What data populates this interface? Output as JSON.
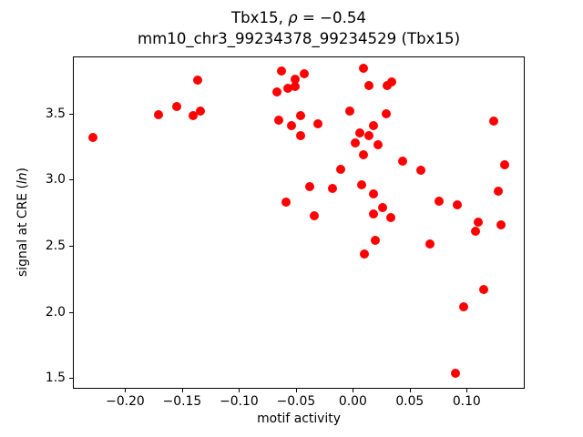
{
  "figure": {
    "title": {
      "prefix": "Tbx15, ",
      "rho": "ρ",
      "suffix": " = −0.54"
    },
    "subtitle": "mm10_chr3_99234378_99234529 (Tbx15)",
    "xlabel": "motif activity",
    "ylabel_prefix": "signal at CRE (",
    "ylabel_italic": "ln",
    "ylabel_suffix": ")"
  },
  "chart_data": {
    "type": "scatter",
    "title": "Tbx15, ρ = −0.54",
    "subtitle": "mm10_chr3_99234378_99234529 (Tbx15)",
    "xlabel": "motif activity",
    "ylabel": "signal at CRE (ln)",
    "xlim": [
      -0.246,
      0.151
    ],
    "ylim": [
      1.42,
      3.93
    ],
    "grid": false,
    "legend": null,
    "marker_color": "#ff0000",
    "x_ticks": [
      {
        "v": -0.2,
        "label": "−0.20"
      },
      {
        "v": -0.15,
        "label": "−0.15"
      },
      {
        "v": -0.1,
        "label": "−0.10"
      },
      {
        "v": -0.05,
        "label": "−0.05"
      },
      {
        "v": 0.0,
        "label": "0.00"
      },
      {
        "v": 0.05,
        "label": "0.05"
      },
      {
        "v": 0.1,
        "label": "0.10"
      }
    ],
    "y_ticks": [
      {
        "v": 1.5,
        "label": "1.5"
      },
      {
        "v": 2.0,
        "label": "2.0"
      },
      {
        "v": 2.5,
        "label": "2.5"
      },
      {
        "v": 3.0,
        "label": "3.0"
      },
      {
        "v": 3.5,
        "label": "3.5"
      }
    ],
    "points": [
      [
        -0.228,
        3.32
      ],
      [
        -0.171,
        3.49
      ],
      [
        -0.155,
        3.55
      ],
      [
        -0.14,
        3.48
      ],
      [
        -0.136,
        3.75
      ],
      [
        -0.134,
        3.52
      ],
      [
        -0.067,
        3.66
      ],
      [
        -0.065,
        3.45
      ],
      [
        -0.063,
        3.82
      ],
      [
        -0.059,
        2.83
      ],
      [
        -0.057,
        3.69
      ],
      [
        -0.054,
        3.41
      ],
      [
        -0.051,
        3.76
      ],
      [
        -0.051,
        3.7
      ],
      [
        -0.046,
        3.48
      ],
      [
        -0.046,
        3.33
      ],
      [
        -0.043,
        3.8
      ],
      [
        -0.038,
        2.95
      ],
      [
        -0.034,
        2.73
      ],
      [
        -0.031,
        3.42
      ],
      [
        -0.018,
        2.93
      ],
      [
        -0.011,
        3.08
      ],
      [
        -0.003,
        3.52
      ],
      [
        0.002,
        3.28
      ],
      [
        0.006,
        3.35
      ],
      [
        0.008,
        2.96
      ],
      [
        0.009,
        3.84
      ],
      [
        0.009,
        3.19
      ],
      [
        0.01,
        2.44
      ],
      [
        0.014,
        3.71
      ],
      [
        0.014,
        3.33
      ],
      [
        0.018,
        3.41
      ],
      [
        0.018,
        2.89
      ],
      [
        0.018,
        2.74
      ],
      [
        0.02,
        2.54
      ],
      [
        0.022,
        3.26
      ],
      [
        0.026,
        2.79
      ],
      [
        0.029,
        3.5
      ],
      [
        0.03,
        3.71
      ],
      [
        0.033,
        2.71
      ],
      [
        0.034,
        3.74
      ],
      [
        0.044,
        3.14
      ],
      [
        0.06,
        3.07
      ],
      [
        0.068,
        2.51
      ],
      [
        0.076,
        2.84
      ],
      [
        0.09,
        1.54
      ],
      [
        0.092,
        2.81
      ],
      [
        0.097,
        2.04
      ],
      [
        0.108,
        2.61
      ],
      [
        0.11,
        2.68
      ],
      [
        0.115,
        2.17
      ],
      [
        0.124,
        3.44
      ],
      [
        0.128,
        2.91
      ],
      [
        0.13,
        2.66
      ],
      [
        0.133,
        3.11
      ]
    ]
  }
}
